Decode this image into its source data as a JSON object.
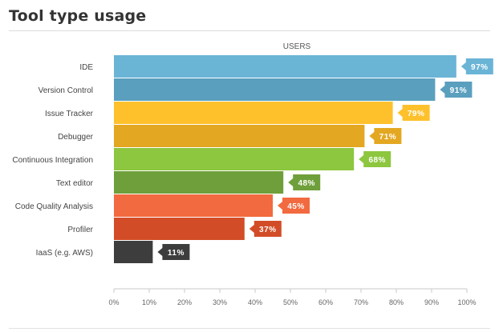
{
  "title": "Tool type usage",
  "chart_data": {
    "type": "bar",
    "orientation": "horizontal",
    "ylabel": "USERS",
    "categories": [
      "IDE",
      "Version Control",
      "Issue Tracker",
      "Debugger",
      "Continuous Integration",
      "Text editor",
      "Code Quality Analysis",
      "Profiler",
      "IaaS (e.g. AWS)"
    ],
    "values": [
      97,
      91,
      79,
      71,
      68,
      48,
      45,
      37,
      11
    ],
    "value_labels": [
      "97%",
      "91%",
      "79%",
      "71%",
      "68%",
      "48%",
      "45%",
      "37%",
      "11%"
    ],
    "colors": [
      "#6ab4d6",
      "#5a9fbe",
      "#fec12c",
      "#e3a721",
      "#8dc63f",
      "#6f9f3a",
      "#f26a3f",
      "#d24d27",
      "#3d3d3d"
    ],
    "x_ticks": [
      "0%",
      "10%",
      "20%",
      "30%",
      "40%",
      "50%",
      "60%",
      "70%",
      "80%",
      "90%",
      "100%"
    ],
    "xlim": [
      0,
      100
    ],
    "grid": false,
    "legend": "none"
  }
}
